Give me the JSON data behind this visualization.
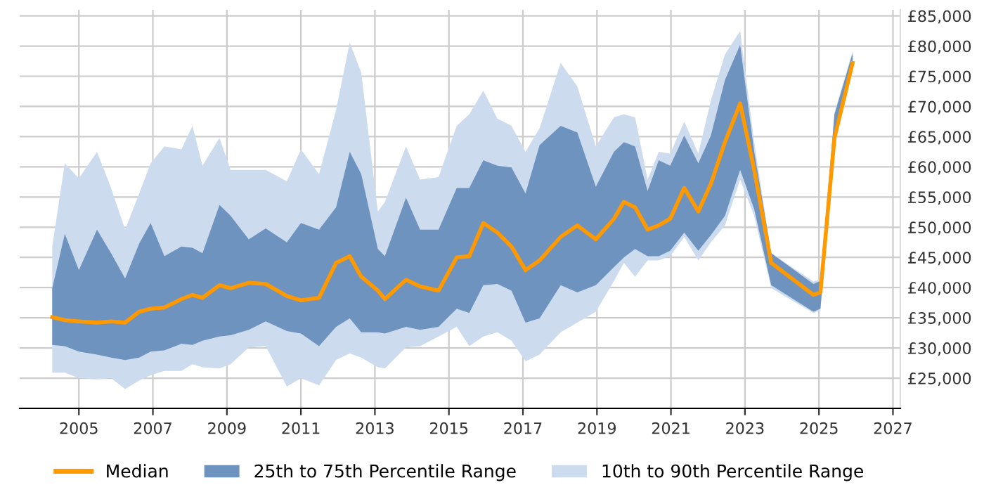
{
  "chart_data": {
    "type": "line",
    "x": [
      2004.28,
      2004.62,
      2005.0,
      2005.49,
      2005.87,
      2006.25,
      2006.63,
      2006.94,
      2007.31,
      2007.77,
      2008.07,
      2008.34,
      2008.8,
      2009.1,
      2009.59,
      2010.05,
      2010.62,
      2011.0,
      2011.49,
      2011.95,
      2012.32,
      2012.63,
      2013.08,
      2013.27,
      2013.84,
      2014.22,
      2014.72,
      2015.21,
      2015.55,
      2015.93,
      2016.31,
      2016.69,
      2017.07,
      2017.45,
      2018.02,
      2018.47,
      2018.97,
      2019.46,
      2019.73,
      2020.03,
      2020.37,
      2020.67,
      2020.98,
      2021.36,
      2021.74,
      2022.08,
      2022.46,
      2022.87,
      2023.25,
      2023.71,
      2024.85,
      2025.04,
      2025.42,
      2025.91
    ],
    "series": [
      {
        "name": "Median",
        "color": "#ff9900",
        "values": [
          35100,
          34600,
          34400,
          34200,
          34400,
          34200,
          36000,
          36500,
          36700,
          38100,
          38800,
          38300,
          40400,
          39900,
          40800,
          40600,
          38600,
          37900,
          38300,
          44100,
          45200,
          41800,
          39500,
          38100,
          41300,
          40200,
          39500,
          45000,
          45200,
          50700,
          49100,
          46800,
          42900,
          44500,
          48400,
          50300,
          48000,
          51400,
          54200,
          53300,
          49600,
          50300,
          51400,
          56500,
          52600,
          57200,
          64100,
          70500,
          59500,
          44100,
          38800,
          39200,
          64800,
          77200
        ]
      },
      {
        "name": "25th to 75th Percentile Range",
        "color": "#6f93bf",
        "values": [
          null,
          null,
          null,
          null,
          null,
          null,
          null,
          null,
          null,
          null,
          null,
          null,
          null,
          null,
          null,
          null,
          null,
          null,
          null,
          null,
          null,
          null,
          null,
          null,
          null,
          null,
          null,
          null,
          null,
          null,
          null,
          null,
          null,
          null,
          null,
          null,
          null,
          null,
          null,
          null,
          null,
          null,
          null,
          null,
          null,
          null,
          null,
          null,
          null,
          null,
          null,
          null,
          null,
          null
        ],
        "lower": [
          30500,
          30300,
          29400,
          28900,
          28400,
          28000,
          28400,
          29400,
          29600,
          30700,
          30500,
          31200,
          31900,
          32100,
          33000,
          34400,
          32800,
          32400,
          30300,
          33500,
          34900,
          32600,
          32600,
          32400,
          33500,
          33000,
          33500,
          36500,
          35800,
          40400,
          40600,
          39500,
          34200,
          34900,
          40400,
          39200,
          40400,
          43400,
          45000,
          46400,
          45200,
          45200,
          46100,
          49100,
          46100,
          48700,
          51900,
          59500,
          53000,
          40400,
          36000,
          36500,
          64100,
          76500
        ],
        "upper": [
          39900,
          48900,
          42900,
          49600,
          45700,
          41500,
          47300,
          50700,
          45200,
          46800,
          46600,
          45700,
          53700,
          51900,
          48000,
          49800,
          47500,
          50700,
          49600,
          53300,
          62500,
          58800,
          46400,
          45200,
          54900,
          49600,
          49600,
          56500,
          56500,
          61100,
          60200,
          59900,
          55600,
          63600,
          66800,
          65700,
          56700,
          62500,
          64100,
          63400,
          56000,
          61100,
          60200,
          65200,
          60600,
          65200,
          74400,
          80200,
          62500,
          45700,
          40600,
          41100,
          68700,
          78800
        ]
      },
      {
        "name": "10th to 90th Percentile Range",
        "color": "#ccdcee",
        "values": [
          null,
          null,
          null,
          null,
          null,
          null,
          null,
          null,
          null,
          null,
          null,
          null,
          null,
          null,
          null,
          null,
          null,
          null,
          null,
          null,
          null,
          null,
          null,
          null,
          null,
          null,
          null,
          null,
          null,
          null,
          null,
          null,
          null,
          null,
          null,
          null,
          null,
          null,
          null,
          null,
          null,
          null,
          null,
          null,
          null,
          null,
          null,
          null,
          null,
          null,
          null,
          null,
          null,
          null
        ],
        "lower": [
          25900,
          25900,
          25000,
          24800,
          25000,
          23200,
          24600,
          25500,
          26200,
          26200,
          27300,
          26800,
          26600,
          27300,
          30100,
          30300,
          23600,
          25000,
          23800,
          28000,
          29100,
          28400,
          26800,
          26600,
          30100,
          30300,
          31900,
          33500,
          30300,
          31900,
          32600,
          31200,
          27800,
          28900,
          32600,
          34200,
          36000,
          41100,
          44100,
          41800,
          44500,
          44500,
          45200,
          48400,
          44500,
          47500,
          50300,
          57900,
          51900,
          39900,
          35800,
          36200,
          63800,
          76200
        ],
        "upper": [
          46800,
          60600,
          58100,
          62500,
          56500,
          49600,
          55600,
          60600,
          63400,
          62900,
          66800,
          60200,
          64800,
          59500,
          59500,
          59500,
          57600,
          62900,
          58800,
          69400,
          80600,
          75600,
          52600,
          54200,
          63400,
          57900,
          58300,
          66800,
          68700,
          72600,
          68000,
          66800,
          62500,
          66400,
          77200,
          73300,
          63400,
          68200,
          68700,
          68200,
          57900,
          62500,
          62200,
          67500,
          62200,
          71000,
          78600,
          82500,
          64100,
          45700,
          41000,
          41400,
          69000,
          79200
        ]
      }
    ],
    "xlim": [
      2003.4,
      2027.2
    ],
    "ylim": [
      20000,
      86000
    ],
    "xticks": [
      2005,
      2007,
      2009,
      2011,
      2013,
      2015,
      2017,
      2019,
      2021,
      2023,
      2025,
      2027
    ],
    "yticks": [
      {
        "value": 25000,
        "label": "£25,000"
      },
      {
        "value": 30000,
        "label": "£30,000"
      },
      {
        "value": 35000,
        "label": "£35,000"
      },
      {
        "value": 40000,
        "label": "£40,000"
      },
      {
        "value": 45000,
        "label": "£45,000"
      },
      {
        "value": 50000,
        "label": "£50,000"
      },
      {
        "value": 55000,
        "label": "£55,000"
      },
      {
        "value": 60000,
        "label": "£60,000"
      },
      {
        "value": 65000,
        "label": "£65,000"
      },
      {
        "value": 70000,
        "label": "£70,000"
      },
      {
        "value": 75000,
        "label": "£75,000"
      },
      {
        "value": 80000,
        "label": "£80,000"
      },
      {
        "value": 85000,
        "label": "£85,000"
      }
    ],
    "grid": true,
    "legend": "bottom"
  }
}
